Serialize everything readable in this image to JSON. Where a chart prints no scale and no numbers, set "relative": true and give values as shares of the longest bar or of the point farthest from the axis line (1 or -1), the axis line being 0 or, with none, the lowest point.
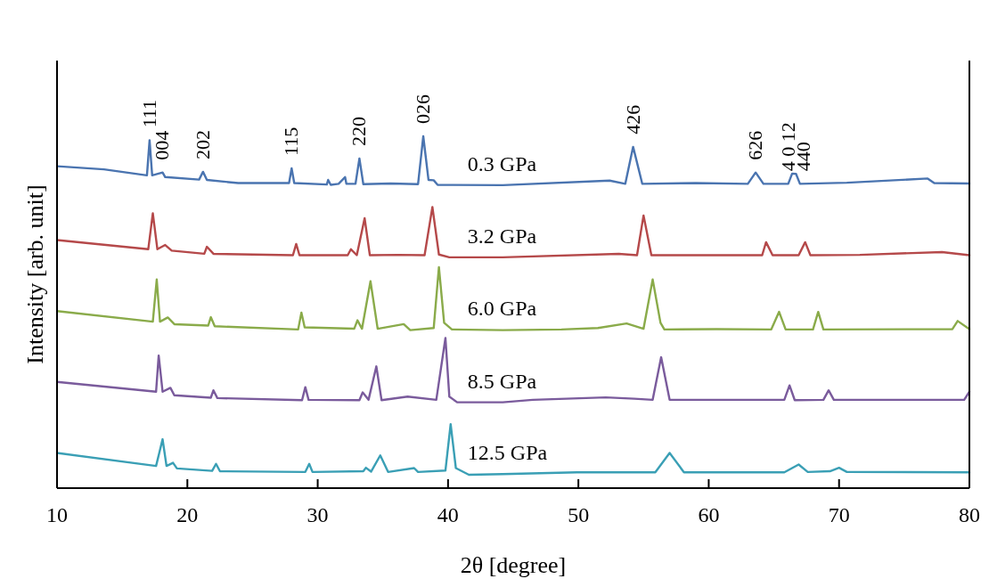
{
  "chart_data": {
    "type": "line",
    "relative": true,
    "xlabel": "2θ [degree]",
    "ylabel": "Intensity [arb. unit]",
    "xlim": [
      10,
      80
    ],
    "xticks": [
      10,
      20,
      30,
      40,
      50,
      60,
      70,
      80
    ],
    "series": [
      {
        "name": "0.3 GPa",
        "color": "#4a74b0",
        "x": [
          10,
          13.6,
          16.9,
          17.1,
          17.3,
          18.1,
          18.3,
          20.9,
          21.2,
          21.5,
          23.9,
          27.8,
          28,
          28.2,
          30.7,
          30.8,
          31,
          31.6,
          32.1,
          32.2,
          32.9,
          33.2,
          33.5,
          35.6,
          37.7,
          38.1,
          38.5,
          38.9,
          39.2,
          44.2,
          52.4,
          53.6,
          54.2,
          54.9,
          59,
          63,
          63.6,
          64.2,
          66.1,
          66.4,
          66.7,
          67,
          70.6,
          76.8,
          77.3,
          80
        ],
        "values": [
          0.915,
          0.906,
          0.889,
          0.989,
          0.889,
          0.897,
          0.884,
          0.877,
          0.899,
          0.876,
          0.867,
          0.867,
          0.909,
          0.867,
          0.863,
          0.876,
          0.862,
          0.865,
          0.884,
          0.865,
          0.865,
          0.937,
          0.864,
          0.866,
          0.864,
          1.0,
          0.876,
          0.875,
          0.862,
          0.861,
          0.874,
          0.865,
          0.97,
          0.865,
          0.867,
          0.865,
          0.897,
          0.865,
          0.865,
          0.894,
          0.893,
          0.865,
          0.868,
          0.88,
          0.867,
          0.866
        ]
      },
      {
        "name": "3.2 GPa",
        "color": "#b5494a",
        "x": [
          10,
          17,
          17.35,
          17.7,
          18.3,
          18.8,
          21.3,
          21.5,
          22,
          28.1,
          28.35,
          28.6,
          32.3,
          32.55,
          33,
          33.6,
          34,
          36.2,
          38.2,
          38.8,
          39.3,
          40.1,
          44.2,
          53.1,
          54.5,
          55,
          55.6,
          60,
          64.1,
          64.4,
          64.9,
          66.9,
          67.4,
          67.8,
          71.6,
          77.9,
          80
        ],
        "values": [
          0.705,
          0.679,
          0.781,
          0.679,
          0.691,
          0.675,
          0.666,
          0.686,
          0.666,
          0.662,
          0.694,
          0.662,
          0.662,
          0.679,
          0.662,
          0.767,
          0.662,
          0.663,
          0.662,
          0.799,
          0.664,
          0.656,
          0.656,
          0.666,
          0.662,
          0.775,
          0.662,
          0.662,
          0.662,
          0.699,
          0.662,
          0.662,
          0.699,
          0.662,
          0.663,
          0.671,
          0.662
        ]
      },
      {
        "name": "6.0 GPa",
        "color": "#8aab4a",
        "x": [
          10,
          17.35,
          17.65,
          17.9,
          18.5,
          19,
          21.6,
          21.8,
          22.1,
          28.5,
          28.75,
          29,
          32.8,
          33.05,
          33.4,
          34.05,
          34.6,
          36.6,
          37.1,
          38.9,
          39.3,
          39.7,
          40.3,
          44.2,
          48.7,
          51.5,
          53.7,
          55,
          55.7,
          56.3,
          56.6,
          60.6,
          64.8,
          65.4,
          65.9,
          68,
          68.4,
          68.8,
          78.7,
          79.1,
          80
        ],
        "values": [
          0.503,
          0.473,
          0.593,
          0.473,
          0.485,
          0.466,
          0.462,
          0.486,
          0.46,
          0.451,
          0.499,
          0.457,
          0.453,
          0.477,
          0.453,
          0.588,
          0.453,
          0.466,
          0.449,
          0.455,
          0.628,
          0.47,
          0.451,
          0.449,
          0.451,
          0.455,
          0.468,
          0.453,
          0.593,
          0.47,
          0.451,
          0.452,
          0.451,
          0.501,
          0.451,
          0.451,
          0.501,
          0.451,
          0.452,
          0.475,
          0.452
        ]
      },
      {
        "name": "8.5 GPa",
        "color": "#7a5b9c",
        "x": [
          10,
          17.6,
          17.8,
          18.1,
          18.7,
          19,
          21.8,
          22,
          22.3,
          28.8,
          29.05,
          29.3,
          33.2,
          33.45,
          33.9,
          34.5,
          34.9,
          36.9,
          39.1,
          39.8,
          40.1,
          40.7,
          44.2,
          46.5,
          52.1,
          54.3,
          55.7,
          56.35,
          57,
          61.3,
          65.8,
          66.2,
          66.6,
          68.8,
          69.2,
          69.6,
          79.6,
          80
        ],
        "values": [
          0.302,
          0.274,
          0.377,
          0.274,
          0.285,
          0.264,
          0.257,
          0.278,
          0.256,
          0.25,
          0.287,
          0.251,
          0.25,
          0.272,
          0.251,
          0.346,
          0.25,
          0.26,
          0.251,
          0.427,
          0.26,
          0.244,
          0.244,
          0.251,
          0.258,
          0.254,
          0.251,
          0.372,
          0.251,
          0.251,
          0.251,
          0.292,
          0.25,
          0.251,
          0.278,
          0.251,
          0.251,
          0.274
        ]
      },
      {
        "name": "12.5 GPa",
        "color": "#3a9fb5",
        "x": [
          10,
          17.6,
          18.1,
          18.4,
          18.9,
          19.2,
          21.9,
          22.2,
          22.5,
          29.05,
          29.35,
          29.6,
          33.5,
          33.7,
          34.1,
          34.8,
          35.4,
          37.4,
          37.7,
          39.8,
          40.2,
          40.6,
          41.6,
          44.2,
          49.9,
          55.9,
          57,
          58.1,
          65.8,
          66.9,
          67.6,
          69.3,
          70,
          70.6,
          80
        ],
        "values": [
          0.1,
          0.063,
          0.139,
          0.063,
          0.072,
          0.056,
          0.049,
          0.069,
          0.048,
          0.046,
          0.069,
          0.046,
          0.048,
          0.058,
          0.047,
          0.093,
          0.046,
          0.057,
          0.046,
          0.05,
          0.182,
          0.057,
          0.038,
          0.04,
          0.045,
          0.045,
          0.1,
          0.045,
          0.045,
          0.067,
          0.046,
          0.048,
          0.058,
          0.046,
          0.045
        ]
      }
    ],
    "annotations": [
      {
        "text": "111",
        "x": 17.1,
        "y": 0.989
      },
      {
        "text": "004",
        "x": 18.1,
        "y": 0.897
      },
      {
        "text": "202",
        "x": 21.2,
        "y": 0.899
      },
      {
        "text": "115",
        "x": 28,
        "y": 0.909
      },
      {
        "text": "220",
        "x": 33.2,
        "y": 0.937
      },
      {
        "text": "026",
        "x": 38.1,
        "y": 1.0
      },
      {
        "text": "426",
        "x": 54.2,
        "y": 0.97
      },
      {
        "text": "626",
        "x": 63.6,
        "y": 0.897
      },
      {
        "text": "4 0 12",
        "x": 66.1,
        "y": 0.865
      },
      {
        "text": "440",
        "x": 67.3,
        "y": 0.865
      }
    ]
  }
}
